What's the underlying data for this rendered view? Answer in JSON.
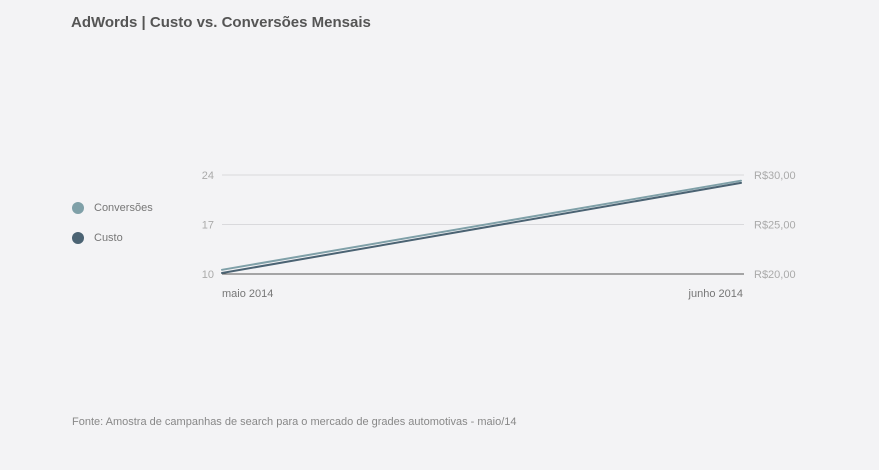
{
  "chart_data": {
    "type": "line",
    "title": "AdWords | Custo vs. Conversões Mensais",
    "categories": [
      "maio 2014",
      "junho 2014"
    ],
    "series": [
      {
        "name": "Conversões",
        "axis": "left",
        "color": "#7fa0a8",
        "values": [
          10.6,
          23.2
        ]
      },
      {
        "name": "Custo",
        "axis": "right",
        "color": "#4b6373",
        "values": [
          20.1,
          29.2
        ]
      }
    ],
    "y_left": {
      "ticks": [
        10,
        17,
        24
      ],
      "tick_labels": [
        "10",
        "17",
        "24"
      ],
      "range": [
        10,
        24
      ]
    },
    "y_right": {
      "ticks": [
        20,
        25,
        30
      ],
      "tick_labels": [
        "R$20,00",
        "R$25,00",
        "R$30,00"
      ],
      "range": [
        20,
        30
      ]
    },
    "grid": true,
    "legend_position": "left"
  },
  "footer": {
    "source": "Fonte: Amostra de campanhas de search para o mercado de grades automotivas - maio/14"
  }
}
